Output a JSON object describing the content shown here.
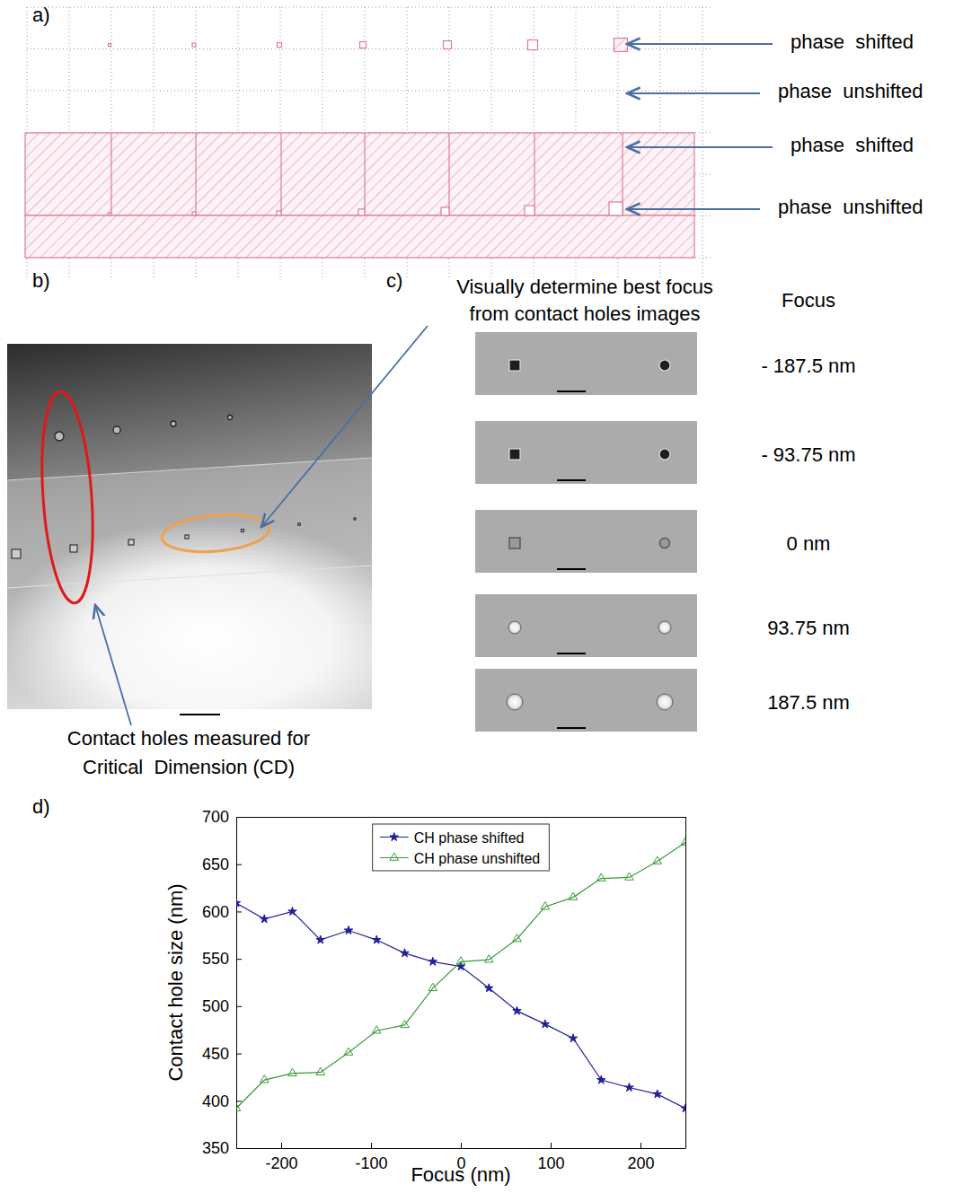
{
  "figure": {
    "panel_a": {
      "letter": "a)",
      "labels": [
        "phase  shifted",
        "phase  unshifted",
        "phase  shifted",
        "phase  unshifted"
      ]
    },
    "panel_b": {
      "letter": "b)",
      "annotation_lines": [
        "Contact holes measured for",
        "Critical  Dimension (CD)"
      ]
    },
    "panel_c": {
      "letter": "c)",
      "annotation_lines": [
        "Visually determine best focus",
        "from contact holes images"
      ],
      "column_title": "Focus",
      "focus_labels": [
        "- 187.5 nm",
        "- 93.75 nm",
        "0 nm",
        "93.75 nm",
        "187.5 nm"
      ]
    },
    "panel_d": {
      "letter": "d)"
    }
  },
  "chart_data": {
    "type": "line",
    "xlabel": "Focus (nm)",
    "ylabel": "Contact hole size (nm)",
    "x": [
      -250,
      -218.75,
      -187.5,
      -156.25,
      -125,
      -93.75,
      -62.5,
      -31.25,
      0,
      31.25,
      62.5,
      93.75,
      125,
      156.25,
      187.5,
      218.75,
      250
    ],
    "series": [
      {
        "name": "CH phase shifted",
        "color": "#20209c",
        "marker": "star",
        "values": [
          609,
          592,
          600,
          570,
          580,
          570,
          556,
          547,
          542,
          519,
          495,
          481,
          466,
          422,
          414,
          407,
          392
        ]
      },
      {
        "name": "CH phase unshifted",
        "color": "#3a9a3a",
        "marker": "triangle",
        "values": [
          392,
          422,
          429,
          430,
          451,
          474,
          480,
          519,
          547,
          549,
          571,
          605,
          615,
          635,
          636,
          653,
          673
        ]
      }
    ],
    "xlim": [
      -250,
      250
    ],
    "ylim": [
      350,
      700
    ],
    "xticks": [
      -200,
      -100,
      0,
      100,
      200
    ],
    "yticks": [
      350,
      400,
      450,
      500,
      550,
      600,
      650,
      700
    ],
    "legend": "top",
    "grid": false
  }
}
